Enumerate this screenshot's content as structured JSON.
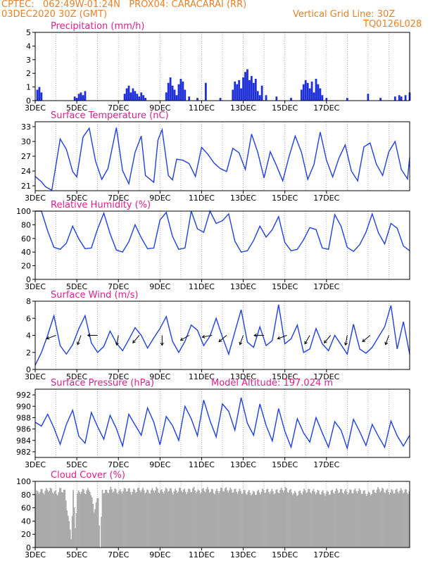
{
  "header": {
    "line1": "CPTEC:   062:49W-01:24N   PROX04: CARACARAI (RR)",
    "line2_left": "03DEC2020 30Z (GMT)",
    "line2_right": "Vertical Grid Line: 30Z",
    "code": "TQ0126L028"
  },
  "x_tick_labels": [
    "3DEC",
    "5DEC",
    "7DEC",
    "9DEC",
    "11DEC",
    "13DEC",
    "15DEC",
    "17DEC"
  ],
  "colors": {
    "header": "#e8822a",
    "title": "#e0208a",
    "series": "#2040e0",
    "bars": "#2030d8",
    "cloud": "#aaaaaa"
  },
  "chart_data": [
    {
      "type": "bar",
      "title": "Precipitation (mm/h)",
      "x_unit": "days since 3DEC 00Z",
      "ylim": [
        0,
        5
      ],
      "yticks": [
        0,
        1,
        2,
        3,
        4,
        5
      ],
      "x": [
        0.1,
        0.2,
        0.3,
        1.9,
        2.0,
        2.1,
        2.2,
        2.3,
        2.4,
        4.3,
        4.4,
        4.5,
        4.6,
        4.7,
        4.8,
        4.9,
        5.0,
        5.1,
        5.2,
        5.3,
        6.3,
        6.4,
        6.5,
        6.6,
        6.7,
        6.8,
        6.9,
        7.0,
        7.1,
        7.2,
        7.4,
        7.8,
        8.2,
        8.9,
        9.5,
        9.6,
        9.7,
        9.8,
        9.9,
        10.0,
        10.1,
        10.2,
        10.3,
        10.4,
        10.5,
        10.6,
        10.7,
        10.8,
        10.9,
        11.1,
        11.6,
        12.3,
        12.8,
        12.9,
        13.0,
        13.1,
        13.2,
        13.3,
        13.4,
        13.5,
        13.6,
        13.7,
        13.8,
        14.0,
        15.0,
        16.0,
        16.6,
        17.3,
        17.5,
        17.6,
        17.8,
        18.0
      ],
      "values": [
        0.8,
        1.0,
        0.6,
        0.3,
        0.2,
        0.5,
        0.6,
        0.4,
        0.7,
        0.5,
        0.9,
        1.1,
        0.6,
        0.9,
        0.7,
        0.5,
        0.3,
        0.6,
        0.4,
        0.2,
        0.6,
        1.3,
        1.7,
        1.1,
        0.8,
        0.4,
        1.2,
        1.6,
        1.4,
        0.8,
        0.3,
        0.2,
        1.3,
        0.2,
        0.8,
        1.4,
        1.2,
        1.5,
        0.9,
        1.7,
        2.1,
        2.3,
        1.5,
        1.8,
        1.3,
        1.6,
        0.7,
        0.4,
        1.1,
        0.4,
        0.3,
        0.2,
        0.8,
        1.2,
        1.5,
        1.3,
        0.9,
        1.4,
        0.6,
        1.6,
        1.2,
        0.9,
        0.4,
        0.2,
        0.2,
        0.5,
        0.2,
        0.3,
        0.4,
        0.3,
        0.4,
        0.6
      ]
    },
    {
      "type": "line",
      "title": "Surface Temperature (nC)",
      "x_unit": "days since 3DEC 00Z",
      "ylim": [
        20,
        34
      ],
      "yticks": [
        21,
        24,
        27,
        30,
        33
      ],
      "x": [
        0,
        0.3,
        0.5,
        0.8,
        1.0,
        1.2,
        1.5,
        1.8,
        2.0,
        2.3,
        2.6,
        2.9,
        3.2,
        3.5,
        3.9,
        4.2,
        4.5,
        4.8,
        5.1,
        5.3,
        5.7,
        5.9,
        6.1,
        6.4,
        6.6,
        6.8,
        7.1,
        7.4,
        7.7,
        8.0,
        8.3,
        8.6,
        8.9,
        9.2,
        9.5,
        9.8,
        10.1,
        10.4,
        10.7,
        11.0,
        11.3,
        11.6,
        11.9,
        12.2,
        12.5,
        12.8,
        13.1,
        13.4,
        13.7,
        14.0,
        14.3,
        14.6,
        14.9,
        15.2,
        15.5,
        15.8,
        16.1,
        16.4,
        16.7,
        17.0,
        17.3,
        17.6,
        17.9,
        18.0
      ],
      "values": [
        22.9,
        21.8,
        20.8,
        20.1,
        25.3,
        30.5,
        28.4,
        23.9,
        22.8,
        30.9,
        32.7,
        26.0,
        22.3,
        24.5,
        32.8,
        24.1,
        21.4,
        27.8,
        31.1,
        23.1,
        21.7,
        30.3,
        32.4,
        23.1,
        22.2,
        26.4,
        26.2,
        25.5,
        22.9,
        28.8,
        27.4,
        25.6,
        24.5,
        23.9,
        28.6,
        27.7,
        24.3,
        31.5,
        27.8,
        22.6,
        27.9,
        25.1,
        22.0,
        26.9,
        31.1,
        27.8,
        22.3,
        25.3,
        31.9,
        26.2,
        22.8,
        26.6,
        29.3,
        24.0,
        22.0,
        28.9,
        29.7,
        25.4,
        23.1,
        27.9,
        30.0,
        24.3,
        22.4,
        26.8
      ]
    },
    {
      "type": "line",
      "title": "Relative Humidity (%)",
      "x_unit": "days since 3DEC 00Z",
      "ylim": [
        0,
        100
      ],
      "yticks": [
        0,
        20,
        40,
        60,
        80,
        100
      ],
      "x": [
        0,
        0.3,
        0.6,
        0.9,
        1.2,
        1.5,
        1.8,
        2.1,
        2.4,
        2.7,
        3.0,
        3.3,
        3.6,
        3.9,
        4.2,
        4.5,
        4.8,
        5.1,
        5.4,
        5.7,
        6.0,
        6.3,
        6.6,
        6.9,
        7.2,
        7.5,
        7.8,
        8.1,
        8.4,
        8.7,
        9.0,
        9.3,
        9.6,
        9.9,
        10.2,
        10.5,
        10.8,
        11.1,
        11.4,
        11.7,
        12.0,
        12.3,
        12.6,
        12.9,
        13.2,
        13.5,
        13.8,
        14.1,
        14.4,
        14.7,
        15.0,
        15.3,
        15.6,
        15.9,
        16.2,
        16.5,
        16.8,
        17.1,
        17.4,
        17.7,
        18.0
      ],
      "values": [
        100,
        100,
        71,
        47,
        44,
        53,
        78,
        59,
        45,
        46,
        74,
        97,
        67,
        43,
        40,
        55,
        80,
        61,
        45,
        46,
        87,
        98,
        63,
        44,
        46,
        100,
        74,
        69,
        100,
        82,
        86,
        96,
        56,
        40,
        42,
        57,
        78,
        62,
        73,
        92,
        54,
        42,
        44,
        58,
        76,
        73,
        46,
        44,
        95,
        78,
        47,
        41,
        51,
        69,
        96,
        68,
        52,
        82,
        75,
        49,
        42
      ]
    },
    {
      "type": "line",
      "title": "Surface Wind (m/s)",
      "x_unit": "days since 3DEC 00Z",
      "ylim": [
        0,
        8
      ],
      "yticks": [
        0,
        2,
        4,
        6,
        8
      ],
      "x": [
        0,
        0.3,
        0.6,
        0.9,
        1.2,
        1.5,
        1.8,
        2.1,
        2.4,
        2.7,
        3.0,
        3.3,
        3.6,
        3.9,
        4.2,
        4.5,
        4.8,
        5.1,
        5.4,
        5.7,
        6.0,
        6.3,
        6.6,
        6.9,
        7.2,
        7.5,
        7.8,
        8.1,
        8.4,
        8.7,
        9.0,
        9.3,
        9.6,
        9.9,
        10.2,
        10.5,
        10.8,
        11.1,
        11.4,
        11.7,
        12.0,
        12.3,
        12.6,
        12.9,
        13.2,
        13.5,
        13.8,
        14.1,
        14.4,
        14.7,
        15.0,
        15.3,
        15.6,
        15.9,
        16.2,
        16.5,
        16.8,
        17.1,
        17.4,
        17.7,
        18.0
      ],
      "values": [
        0.5,
        2.0,
        4.0,
        6.3,
        2.8,
        1.8,
        2.9,
        4.8,
        6.3,
        3.1,
        2.0,
        2.7,
        4.5,
        3.1,
        2.2,
        3.5,
        4.9,
        4.0,
        2.5,
        3.7,
        4.8,
        6.2,
        3.3,
        2.0,
        3.3,
        5.2,
        4.6,
        2.8,
        3.9,
        6.0,
        3.8,
        1.8,
        4.4,
        7.0,
        3.2,
        2.6,
        5.0,
        2.8,
        3.4,
        7.6,
        3.0,
        3.6,
        5.2,
        2.0,
        2.4,
        4.8,
        3.0,
        2.2,
        4.0,
        2.9,
        1.8,
        5.3,
        2.4,
        1.9,
        2.6,
        3.8,
        5.0,
        7.5,
        2.4,
        5.6,
        1.8
      ],
      "arrows_at_4": [
        1.0,
        2.2,
        3.0,
        4.0,
        5.0,
        6.1,
        7.4,
        8.5,
        9.2,
        10.0,
        11.0,
        12.1,
        13.2,
        14.2,
        15.0,
        16.1,
        17.0
      ]
    },
    {
      "type": "line",
      "title": "Surface Pressure (hPa)",
      "annotation": "Model Altitude: 197.024 m",
      "x_unit": "days since 3DEC 00Z",
      "ylim": [
        981,
        993
      ],
      "yticks": [
        982,
        984,
        986,
        988,
        990,
        992
      ],
      "x": [
        0,
        0.3,
        0.6,
        0.9,
        1.2,
        1.5,
        1.8,
        2.1,
        2.4,
        2.7,
        3.0,
        3.3,
        3.6,
        3.9,
        4.2,
        4.5,
        4.8,
        5.1,
        5.4,
        5.7,
        6.0,
        6.3,
        6.6,
        6.9,
        7.2,
        7.5,
        7.8,
        8.1,
        8.4,
        8.7,
        9.0,
        9.3,
        9.6,
        9.9,
        10.2,
        10.5,
        10.8,
        11.1,
        11.4,
        11.7,
        12.0,
        12.3,
        12.6,
        12.9,
        13.2,
        13.5,
        13.8,
        14.1,
        14.4,
        14.7,
        15.0,
        15.3,
        15.6,
        15.9,
        16.2,
        16.5,
        16.8,
        17.1,
        17.4,
        17.7,
        18.0
      ],
      "values": [
        987.2,
        986.5,
        988.6,
        986.2,
        983.3,
        986.8,
        989.3,
        984.7,
        983.5,
        988.9,
        986.4,
        984.2,
        988.4,
        986.1,
        983.0,
        988.6,
        986.7,
        984.9,
        989.7,
        987.2,
        983.2,
        988.2,
        986.6,
        984.0,
        990.0,
        987.8,
        984.8,
        991.1,
        987.5,
        984.6,
        990.4,
        989.1,
        985.8,
        991.5,
        987.0,
        984.9,
        990.4,
        986.6,
        983.9,
        989.6,
        985.6,
        982.8,
        987.8,
        985.3,
        983.7,
        988.0,
        985.3,
        982.8,
        987.3,
        985.8,
        982.6,
        987.7,
        985.5,
        983.1,
        986.8,
        984.7,
        982.8,
        987.4,
        984.8,
        983.0,
        984.9
      ]
    },
    {
      "type": "area",
      "title": "Cloud Cover (%)",
      "x_unit": "days since 3DEC 00Z",
      "ylim": [
        0,
        100
      ],
      "yticks": [
        0,
        20,
        40,
        60,
        80,
        100
      ],
      "x": [
        0,
        0.2,
        0.4,
        0.6,
        0.8,
        1.0,
        1.2,
        1.4,
        1.6,
        1.7,
        1.8,
        1.9,
        2.0,
        2.2,
        2.4,
        2.6,
        2.8,
        3.0,
        3.1,
        3.2,
        3.4,
        3.6,
        3.8,
        4.0,
        4.2,
        4.4,
        4.6,
        4.8,
        5.0,
        5.2,
        5.4,
        5.6,
        5.8,
        6.0,
        6.2,
        6.4,
        6.6,
        6.8,
        7.0,
        7.2,
        7.4,
        7.6,
        7.8,
        8.0,
        8.2,
        8.4,
        8.6,
        8.8,
        9.0,
        9.5,
        10.0,
        10.5,
        11.0,
        11.5,
        12.0,
        12.5,
        13.0,
        13.5,
        14.0,
        14.5,
        15.0,
        15.5,
        16.0,
        16.5,
        17.0,
        17.5,
        18.0
      ],
      "values": [
        85,
        90,
        88,
        92,
        90,
        85,
        92,
        88,
        40,
        20,
        88,
        35,
        85,
        90,
        88,
        92,
        60,
        80,
        3,
        90,
        88,
        92,
        90,
        88,
        90,
        92,
        88,
        90,
        92,
        90,
        88,
        90,
        92,
        88,
        90,
        92,
        88,
        90,
        92,
        88,
        90,
        92,
        88,
        90,
        92,
        90,
        88,
        90,
        92,
        90,
        88,
        86,
        90,
        88,
        92,
        85,
        90,
        88,
        86,
        90,
        88,
        90,
        85,
        92,
        88,
        90,
        88
      ]
    }
  ]
}
